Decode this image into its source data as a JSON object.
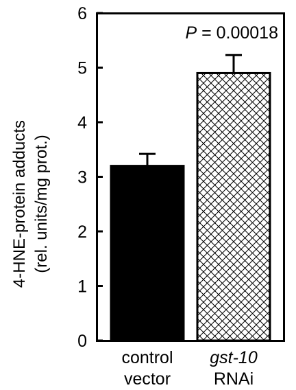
{
  "chart_data": {
    "type": "bar",
    "ylabel_line1": "4-HNE-protein adducts",
    "ylabel_line2": "(rel. units/mg prot.)",
    "ylim": [
      0,
      6
    ],
    "yticks": [
      "0",
      "1",
      "2",
      "3",
      "4",
      "5",
      "6"
    ],
    "categories": [
      {
        "line1": "control",
        "line2": "vector",
        "line1_italic": false
      },
      {
        "line1": "gst-10",
        "line2": "RNAi",
        "line1_italic": true
      }
    ],
    "values": [
      3.2,
      4.9
    ],
    "errors": [
      0.22,
      0.33
    ],
    "fills": [
      "solid-black",
      "crosshatch"
    ],
    "annotation": {
      "italic": "P",
      "rest": " = 0.00018"
    },
    "colors": {
      "bar1": "#000000",
      "axis": "#000000",
      "background": "#ffffff"
    }
  }
}
